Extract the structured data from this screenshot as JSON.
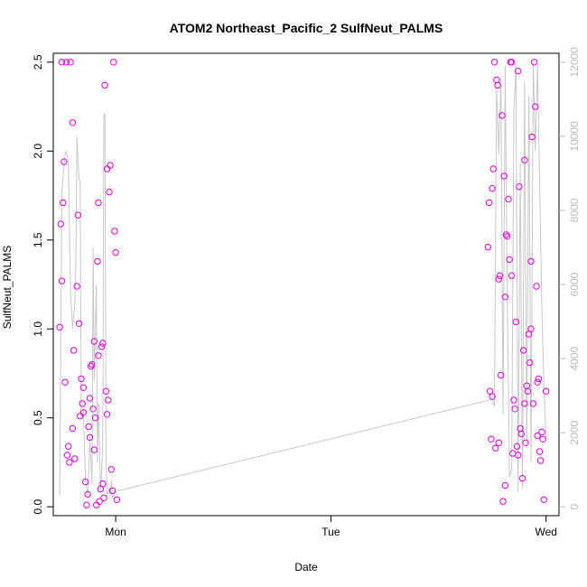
{
  "chart_data": {
    "type": "scatter",
    "title": "ATOM2 Northeast_Pacific_2 SulfNeut_PALMS",
    "xlabel": "Date",
    "ylabel": "SulfNeut_PALMS",
    "x_ticks": [
      "Mon",
      "Tue",
      "Wed"
    ],
    "x_range_days": [
      -0.29,
      2.06
    ],
    "ylim": [
      -0.05,
      2.55
    ],
    "y_ticks": [
      "0.0",
      "0.5",
      "1.0",
      "1.5",
      "2.0",
      "2.5"
    ],
    "y2_ticks": [
      "0",
      "2000",
      "4000",
      "6000",
      "8000",
      "10000",
      "12000"
    ],
    "y2lim": [
      -240,
      12240
    ],
    "grid": false,
    "legend": "none",
    "colors": {
      "points": "#e000e0",
      "altitude_line": "#c8c8c8",
      "axis": "#000000",
      "right_axis": "#bbbbbb"
    },
    "points_x_days": [
      -0.26,
      -0.255,
      -0.25,
      -0.245,
      -0.24,
      -0.235,
      -0.23,
      -0.225,
      -0.22,
      -0.215,
      -0.21,
      -0.2,
      -0.195,
      -0.19,
      -0.18,
      -0.175,
      -0.17,
      -0.165,
      -0.16,
      -0.155,
      -0.15,
      -0.14,
      -0.135,
      -0.13,
      -0.125,
      -0.12,
      -0.115,
      -0.11,
      -0.105,
      -0.1,
      -0.095,
      -0.09,
      -0.085,
      -0.08,
      -0.075,
      -0.07,
      -0.065,
      -0.06,
      -0.055,
      -0.05,
      -0.045,
      -0.04,
      -0.035,
      -0.03,
      -0.025,
      -0.02,
      -0.015,
      -0.01,
      -0.005,
      0.0,
      0.005,
      1.73,
      1.735,
      1.74,
      1.745,
      1.75,
      1.755,
      1.76,
      1.765,
      1.77,
      1.775,
      1.78,
      1.785,
      1.79,
      1.795,
      1.8,
      1.805,
      1.81,
      1.815,
      1.82,
      1.825,
      1.83,
      1.835,
      1.84,
      1.845,
      1.85,
      1.855,
      1.86,
      1.865,
      1.87,
      1.875,
      1.88,
      1.885,
      1.89,
      1.895,
      1.9,
      1.905,
      1.91,
      1.915,
      1.92,
      1.925,
      1.93,
      1.935,
      1.94,
      1.945,
      1.95,
      1.955,
      1.96,
      1.965,
      1.97,
      1.975,
      1.98,
      1.985,
      1.99,
      2.0,
      -0.25,
      -0.2,
      -0.15,
      -0.12,
      -0.1,
      -0.08,
      -0.06,
      -0.04,
      1.75,
      1.78,
      1.81,
      1.84,
      1.87,
      1.9,
      1.93,
      1.96
    ],
    "points_y": [
      1.01,
      1.59,
      1.27,
      1.71,
      1.94,
      0.7,
      2.5,
      0.29,
      0.34,
      0.25,
      2.5,
      2.16,
      0.88,
      0.27,
      1.24,
      1.64,
      1.03,
      0.51,
      0.72,
      0.58,
      0.67,
      0.14,
      0.01,
      0.07,
      0.45,
      0.39,
      0.79,
      0.8,
      0.55,
      0.93,
      0.5,
      0.01,
      1.38,
      1.71,
      0.03,
      0.1,
      0.9,
      0.13,
      0.05,
      2.37,
      0.65,
      0.52,
      0.6,
      1.77,
      1.92,
      0.21,
      0.09,
      2.5,
      1.55,
      1.43,
      0.04,
      1.46,
      1.71,
      0.65,
      0.38,
      1.79,
      1.9,
      2.5,
      0.33,
      2.4,
      2.37,
      0.36,
      1.3,
      0.74,
      2.2,
      0.03,
      1.86,
      0.12,
      1.53,
      1.52,
      1.73,
      1.39,
      2.5,
      1.3,
      0.3,
      0.6,
      0.55,
      1.04,
      0.34,
      0.29,
      1.8,
      0.44,
      0.41,
      0.16,
      0.88,
      0.58,
      0.36,
      0.68,
      0.65,
      0.97,
      0.81,
      1.38,
      2.08,
      0.58,
      2.5,
      2.25,
      1.24,
      0.4,
      0.72,
      0.31,
      0.26,
      0.42,
      0.38,
      0.04,
      0.65,
      2.5,
      0.44,
      0.53,
      0.61,
      0.32,
      0.85,
      0.92,
      1.9,
      0.62,
      1.28,
      1.18,
      2.5,
      2.45,
      1.95,
      1.0,
      0.7
    ],
    "altitude_line_x_days": [
      -0.26,
      -0.25,
      -0.24,
      -0.235,
      -0.23,
      -0.22,
      -0.21,
      -0.2,
      -0.19,
      -0.185,
      -0.18,
      -0.17,
      -0.165,
      -0.16,
      -0.15,
      -0.14,
      -0.13,
      -0.12,
      -0.11,
      -0.105,
      -0.1,
      -0.09,
      -0.085,
      -0.08,
      -0.07,
      -0.06,
      -0.055,
      -0.05,
      -0.045,
      -0.04,
      -0.03,
      -0.025,
      -0.02,
      -0.015,
      -0.01,
      -0.005,
      0.0,
      0.005,
      1.75,
      1.76,
      1.77,
      1.78,
      1.79,
      1.8,
      1.81,
      1.82,
      1.83,
      1.84,
      1.85,
      1.86,
      1.87,
      1.88,
      1.89,
      1.9,
      1.91,
      1.92,
      1.93,
      1.94,
      1.95,
      1.96,
      1.97,
      1.98,
      1.99,
      2.0
    ],
    "altitude_line_y": [
      300,
      8500,
      9200,
      9500,
      9600,
      9300,
      5800,
      4800,
      5500,
      6500,
      10000,
      8800,
      8800,
      2400,
      2600,
      700,
      300,
      1800,
      600,
      7000,
      3400,
      6000,
      1200,
      2800,
      400,
      1600,
      10600,
      10600,
      1300,
      300,
      500,
      350,
      700,
      250,
      300,
      350,
      400,
      420,
      2900,
      2700,
      11300,
      9500,
      11600,
      2500,
      11900,
      5500,
      800,
      1000,
      10700,
      11900,
      400,
      9300,
      500,
      11500,
      1600,
      11100,
      1200,
      12000,
      9600,
      11900,
      8700,
      5500,
      3200,
      1800
    ]
  }
}
